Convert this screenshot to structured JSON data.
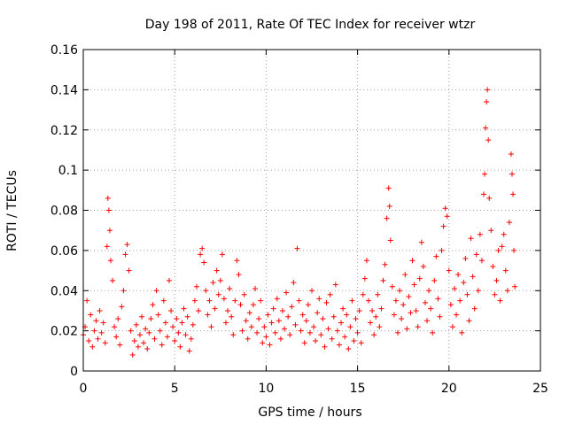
{
  "chart_data": {
    "type": "scatter",
    "title": "Day 198 of 2011, Rate Of TEC Index for receiver wtzr",
    "xlabel": "GPS time / hours",
    "ylabel": "ROTI / TECUs",
    "xlim": [
      0,
      25
    ],
    "ylim": [
      0,
      0.16
    ],
    "x_ticks": [
      "0",
      "5",
      "10",
      "15",
      "20",
      "25"
    ],
    "y_ticks": [
      "0",
      "0.02",
      "0.04",
      "0.06",
      "0.08",
      "0.1",
      "0.12",
      "0.14",
      "0.16"
    ],
    "grid": true,
    "marker": "+",
    "series": [
      {
        "color": "#ff0000",
        "points": [
          [
            0.0,
            0.018
          ],
          [
            0.1,
            0.022
          ],
          [
            0.2,
            0.035
          ],
          [
            0.3,
            0.015
          ],
          [
            0.4,
            0.028
          ],
          [
            0.5,
            0.012
          ],
          [
            0.6,
            0.02
          ],
          [
            0.7,
            0.025
          ],
          [
            0.8,
            0.016
          ],
          [
            0.9,
            0.03
          ],
          [
            1.0,
            0.019
          ],
          [
            1.1,
            0.024
          ],
          [
            1.2,
            0.014
          ],
          [
            1.3,
            0.062
          ],
          [
            1.35,
            0.086
          ],
          [
            1.4,
            0.08
          ],
          [
            1.45,
            0.07
          ],
          [
            1.5,
            0.055
          ],
          [
            1.6,
            0.045
          ],
          [
            1.7,
            0.022
          ],
          [
            1.8,
            0.017
          ],
          [
            1.9,
            0.026
          ],
          [
            2.0,
            0.013
          ],
          [
            2.1,
            0.032
          ],
          [
            2.2,
            0.04
          ],
          [
            2.3,
            0.058
          ],
          [
            2.4,
            0.063
          ],
          [
            2.5,
            0.05
          ],
          [
            2.6,
            0.02
          ],
          [
            2.7,
            0.008
          ],
          [
            2.8,
            0.015
          ],
          [
            2.9,
            0.023
          ],
          [
            3.0,
            0.012
          ],
          [
            3.1,
            0.018
          ],
          [
            3.2,
            0.027
          ],
          [
            3.3,
            0.014
          ],
          [
            3.4,
            0.021
          ],
          [
            3.5,
            0.011
          ],
          [
            3.6,
            0.019
          ],
          [
            3.7,
            0.026
          ],
          [
            3.8,
            0.033
          ],
          [
            3.9,
            0.016
          ],
          [
            4.0,
            0.04
          ],
          [
            4.1,
            0.028
          ],
          [
            4.2,
            0.02
          ],
          [
            4.3,
            0.013
          ],
          [
            4.4,
            0.035
          ],
          [
            4.5,
            0.024
          ],
          [
            4.6,
            0.017
          ],
          [
            4.7,
            0.045
          ],
          [
            4.8,
            0.03
          ],
          [
            4.9,
            0.022
          ],
          [
            5.0,
            0.015
          ],
          [
            5.1,
            0.026
          ],
          [
            5.2,
            0.019
          ],
          [
            5.3,
            0.012
          ],
          [
            5.4,
            0.024
          ],
          [
            5.5,
            0.031
          ],
          [
            5.6,
            0.018
          ],
          [
            5.7,
            0.027
          ],
          [
            5.8,
            0.01
          ],
          [
            5.9,
            0.016
          ],
          [
            6.0,
            0.023
          ],
          [
            6.1,
            0.035
          ],
          [
            6.2,
            0.042
          ],
          [
            6.3,
            0.03
          ],
          [
            6.4,
            0.058
          ],
          [
            6.5,
            0.061
          ],
          [
            6.6,
            0.054
          ],
          [
            6.7,
            0.04
          ],
          [
            6.8,
            0.028
          ],
          [
            6.9,
            0.035
          ],
          [
            7.0,
            0.022
          ],
          [
            7.1,
            0.044
          ],
          [
            7.2,
            0.031
          ],
          [
            7.3,
            0.05
          ],
          [
            7.4,
            0.038
          ],
          [
            7.5,
            0.045
          ],
          [
            7.6,
            0.058
          ],
          [
            7.7,
            0.036
          ],
          [
            7.8,
            0.024
          ],
          [
            7.9,
            0.03
          ],
          [
            8.0,
            0.041
          ],
          [
            8.1,
            0.027
          ],
          [
            8.2,
            0.018
          ],
          [
            8.3,
            0.035
          ],
          [
            8.4,
            0.055
          ],
          [
            8.5,
            0.048
          ],
          [
            8.6,
            0.033
          ],
          [
            8.7,
            0.02
          ],
          [
            8.8,
            0.038
          ],
          [
            8.9,
            0.025
          ],
          [
            9.0,
            0.016
          ],
          [
            9.1,
            0.029
          ],
          [
            9.2,
            0.022
          ],
          [
            9.3,
            0.033
          ],
          [
            9.4,
            0.041
          ],
          [
            9.5,
            0.019
          ],
          [
            9.6,
            0.026
          ],
          [
            9.7,
            0.035
          ],
          [
            9.8,
            0.014
          ],
          [
            9.9,
            0.022
          ],
          [
            10.0,
            0.017
          ],
          [
            10.1,
            0.028
          ],
          [
            10.2,
            0.013
          ],
          [
            10.3,
            0.024
          ],
          [
            10.4,
            0.031
          ],
          [
            10.5,
            0.019
          ],
          [
            10.6,
            0.036
          ],
          [
            10.7,
            0.025
          ],
          [
            10.8,
            0.016
          ],
          [
            10.9,
            0.03
          ],
          [
            11.0,
            0.021
          ],
          [
            11.1,
            0.039
          ],
          [
            11.2,
            0.027
          ],
          [
            11.3,
            0.018
          ],
          [
            11.4,
            0.032
          ],
          [
            11.5,
            0.044
          ],
          [
            11.6,
            0.023
          ],
          [
            11.7,
            0.061
          ],
          [
            11.8,
            0.035
          ],
          [
            11.9,
            0.02
          ],
          [
            12.0,
            0.028
          ],
          [
            12.1,
            0.014
          ],
          [
            12.2,
            0.025
          ],
          [
            12.3,
            0.033
          ],
          [
            12.4,
            0.019
          ],
          [
            12.5,
            0.04
          ],
          [
            12.6,
            0.022
          ],
          [
            12.7,
            0.015
          ],
          [
            12.8,
            0.029
          ],
          [
            12.9,
            0.036
          ],
          [
            13.0,
            0.018
          ],
          [
            13.1,
            0.026
          ],
          [
            13.2,
            0.012
          ],
          [
            13.3,
            0.034
          ],
          [
            13.4,
            0.021
          ],
          [
            13.5,
            0.038
          ],
          [
            13.6,
            0.016
          ],
          [
            13.7,
            0.027
          ],
          [
            13.8,
            0.043
          ],
          [
            13.9,
            0.02
          ],
          [
            14.0,
            0.013
          ],
          [
            14.1,
            0.024
          ],
          [
            14.2,
            0.031
          ],
          [
            14.3,
            0.017
          ],
          [
            14.4,
            0.028
          ],
          [
            14.5,
            0.011
          ],
          [
            14.6,
            0.022
          ],
          [
            14.7,
            0.035
          ],
          [
            14.8,
            0.015
          ],
          [
            14.9,
            0.026
          ],
          [
            15.0,
            0.019
          ],
          [
            15.1,
            0.03
          ],
          [
            15.2,
            0.014
          ],
          [
            15.3,
            0.038
          ],
          [
            15.4,
            0.046
          ],
          [
            15.5,
            0.055
          ],
          [
            15.6,
            0.035
          ],
          [
            15.7,
            0.024
          ],
          [
            15.8,
            0.03
          ],
          [
            15.9,
            0.018
          ],
          [
            16.0,
            0.027
          ],
          [
            16.1,
            0.038
          ],
          [
            16.2,
            0.022
          ],
          [
            16.3,
            0.031
          ],
          [
            16.4,
            0.045
          ],
          [
            16.5,
            0.053
          ],
          [
            16.6,
            0.076
          ],
          [
            16.7,
            0.091
          ],
          [
            16.75,
            0.082
          ],
          [
            16.8,
            0.065
          ],
          [
            16.9,
            0.042
          ],
          [
            17.0,
            0.028
          ],
          [
            17.1,
            0.035
          ],
          [
            17.2,
            0.019
          ],
          [
            17.3,
            0.04
          ],
          [
            17.4,
            0.026
          ],
          [
            17.5,
            0.033
          ],
          [
            17.6,
            0.048
          ],
          [
            17.7,
            0.021
          ],
          [
            17.8,
            0.037
          ],
          [
            17.9,
            0.029
          ],
          [
            18.0,
            0.055
          ],
          [
            18.1,
            0.043
          ],
          [
            18.2,
            0.03
          ],
          [
            18.3,
            0.022
          ],
          [
            18.4,
            0.046
          ],
          [
            18.5,
            0.064
          ],
          [
            18.6,
            0.052
          ],
          [
            18.7,
            0.034
          ],
          [
            18.8,
            0.025
          ],
          [
            18.9,
            0.04
          ],
          [
            19.0,
            0.031
          ],
          [
            19.1,
            0.019
          ],
          [
            19.2,
            0.045
          ],
          [
            19.3,
            0.057
          ],
          [
            19.4,
            0.036
          ],
          [
            19.5,
            0.027
          ],
          [
            19.6,
            0.06
          ],
          [
            19.7,
            0.072
          ],
          [
            19.8,
            0.081
          ],
          [
            19.9,
            0.077
          ],
          [
            20.0,
            0.05
          ],
          [
            20.1,
            0.033
          ],
          [
            20.2,
            0.022
          ],
          [
            20.3,
            0.041
          ],
          [
            20.4,
            0.028
          ],
          [
            20.5,
            0.048
          ],
          [
            20.6,
            0.035
          ],
          [
            20.7,
            0.019
          ],
          [
            20.8,
            0.044
          ],
          [
            20.9,
            0.056
          ],
          [
            21.0,
            0.038
          ],
          [
            21.1,
            0.025
          ],
          [
            21.2,
            0.066
          ],
          [
            21.3,
            0.047
          ],
          [
            21.4,
            0.031
          ],
          [
            21.5,
            0.058
          ],
          [
            21.6,
            0.04
          ],
          [
            21.7,
            0.068
          ],
          [
            21.8,
            0.055
          ],
          [
            21.9,
            0.088
          ],
          [
            21.95,
            0.098
          ],
          [
            22.0,
            0.121
          ],
          [
            22.05,
            0.134
          ],
          [
            22.1,
            0.14
          ],
          [
            22.15,
            0.115
          ],
          [
            22.2,
            0.086
          ],
          [
            22.3,
            0.07
          ],
          [
            22.4,
            0.052
          ],
          [
            22.5,
            0.038
          ],
          [
            22.6,
            0.045
          ],
          [
            22.7,
            0.06
          ],
          [
            22.8,
            0.035
          ],
          [
            22.9,
            0.062
          ],
          [
            23.0,
            0.068
          ],
          [
            23.1,
            0.05
          ],
          [
            23.2,
            0.04
          ],
          [
            23.3,
            0.074
          ],
          [
            23.4,
            0.108
          ],
          [
            23.45,
            0.098
          ],
          [
            23.5,
            0.088
          ],
          [
            23.55,
            0.06
          ],
          [
            23.6,
            0.042
          ]
        ]
      }
    ]
  }
}
